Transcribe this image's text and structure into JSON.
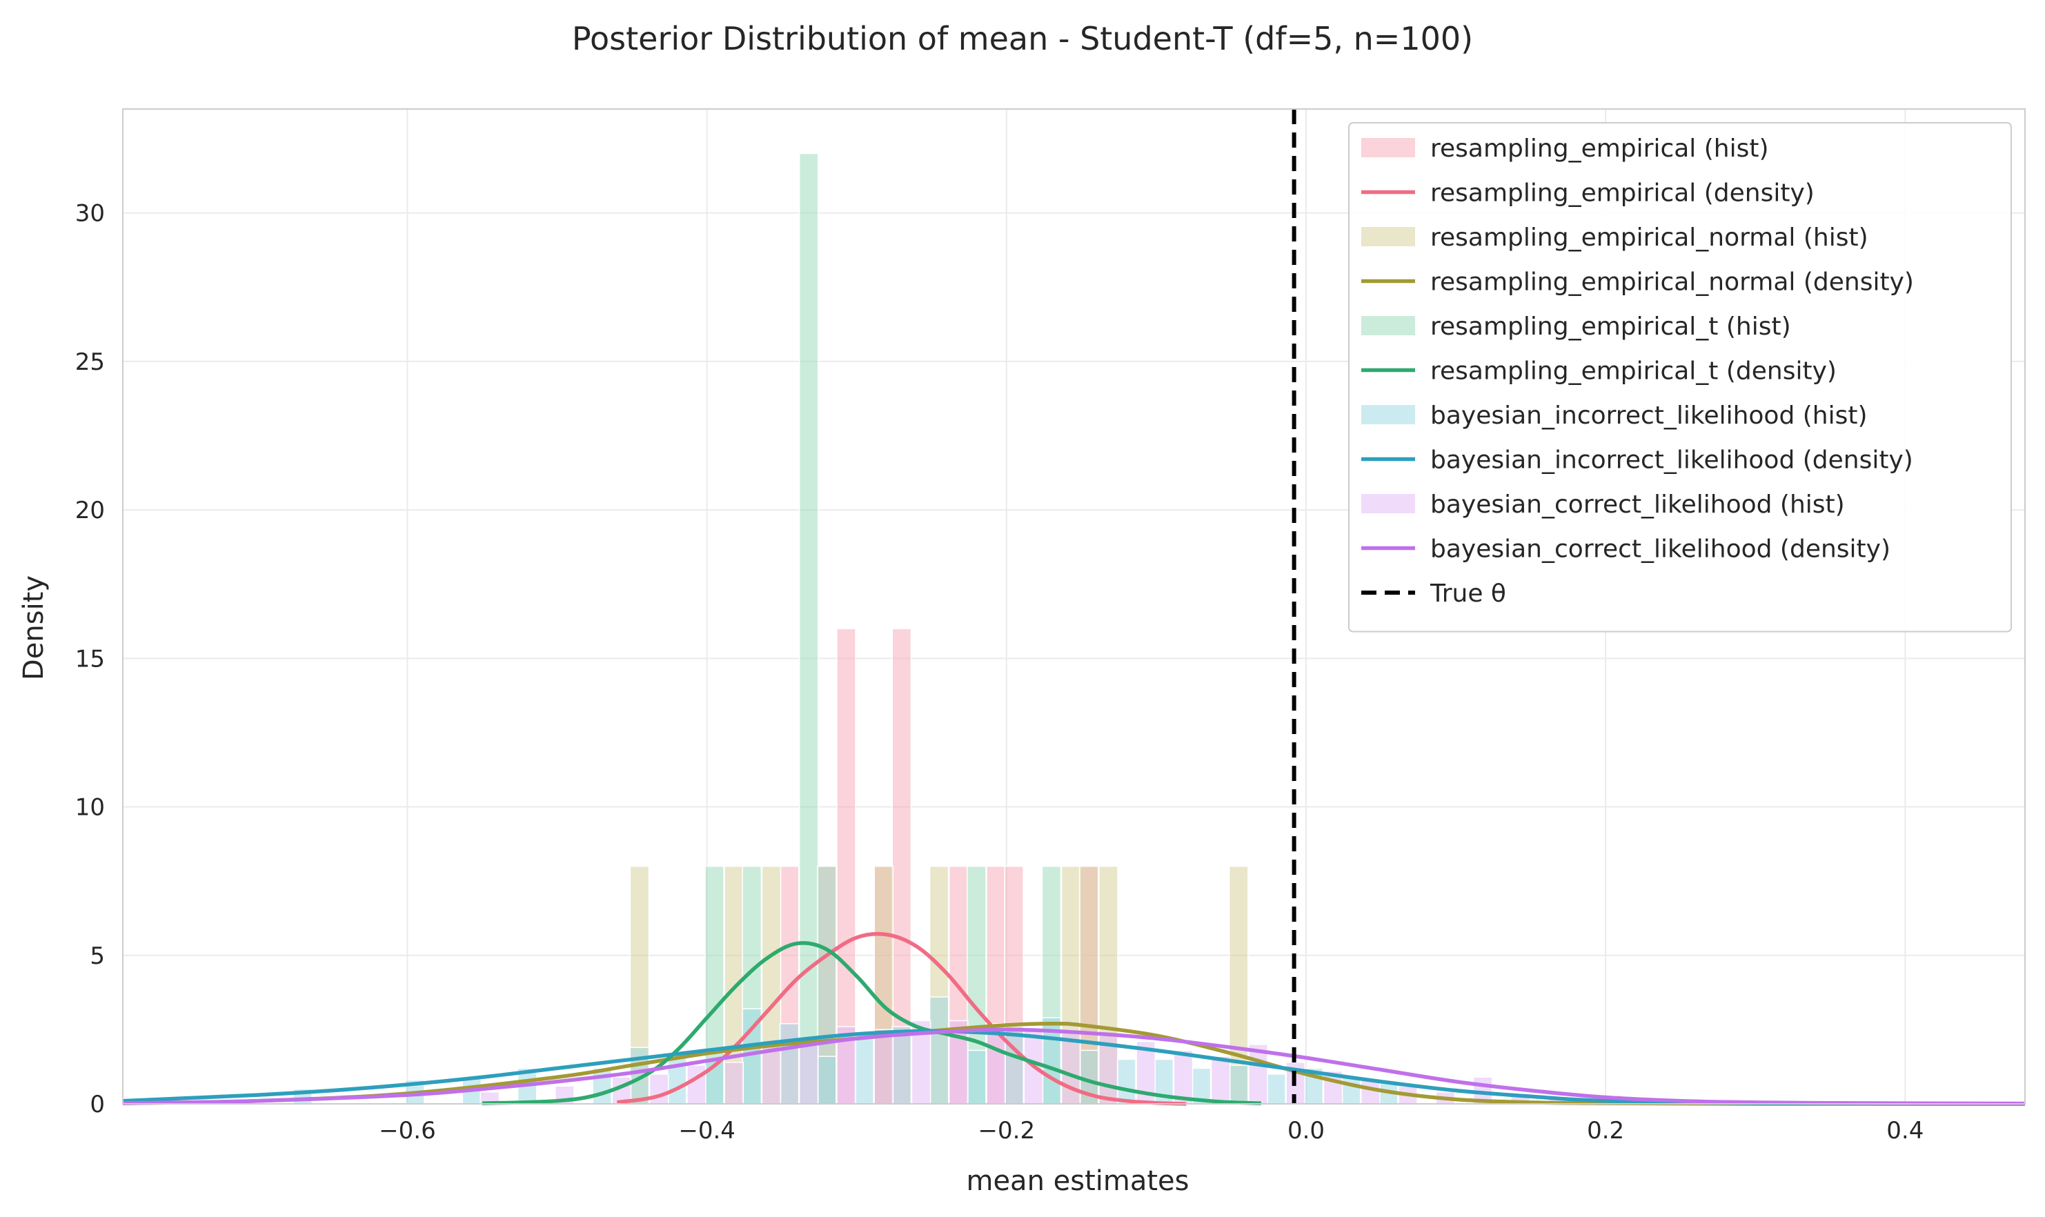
{
  "chart_data": {
    "type": "histogram+density",
    "title": "Posterior Distribution of mean - Student-T (df=5, n=100)",
    "xlabel": "mean estimates",
    "ylabel": "Density",
    "xlim": [
      -0.79,
      0.48
    ],
    "ylim": [
      0,
      33.5
    ],
    "xticks": [
      -0.6,
      -0.4,
      -0.2,
      0.0,
      0.2,
      0.4
    ],
    "xtick_labels": [
      "−0.6",
      "−0.4",
      "−0.2",
      "0.0",
      "0.2",
      "0.4"
    ],
    "yticks": [
      0,
      5,
      10,
      15,
      20,
      25,
      30
    ],
    "ytick_labels": [
      "0",
      "5",
      "10",
      "15",
      "20",
      "25",
      "30"
    ],
    "grid": true,
    "legend_position": "top-right",
    "true_theta": {
      "name": "True θ",
      "x": -0.008,
      "color": "#000000"
    },
    "series": [
      {
        "name": "resampling_empirical",
        "hist_label": "resampling_empirical (hist)",
        "density_label": "resampling_empirical (density)",
        "color": "#f06c84",
        "hist_color": "#f7a7b5",
        "bin_width": 0.0125,
        "hist": [
          {
            "x": -0.345,
            "y": 8.0
          },
          {
            "x": -0.32,
            "y": 8.0
          },
          {
            "x": -0.307,
            "y": 16.0
          },
          {
            "x": -0.282,
            "y": 8.0
          },
          {
            "x": -0.27,
            "y": 16.0
          },
          {
            "x": -0.232,
            "y": 8.0
          },
          {
            "x": -0.207,
            "y": 8.0
          },
          {
            "x": -0.195,
            "y": 8.0
          },
          {
            "x": -0.145,
            "y": 8.0
          }
        ],
        "density": {
          "x": [
            -0.46,
            -0.43,
            -0.4,
            -0.38,
            -0.36,
            -0.34,
            -0.32,
            -0.3,
            -0.28,
            -0.26,
            -0.24,
            -0.22,
            -0.2,
            -0.18,
            -0.16,
            -0.14,
            -0.12,
            -0.1,
            -0.08
          ],
          "y": [
            0.05,
            0.3,
            1.1,
            2.0,
            3.1,
            4.2,
            5.0,
            5.6,
            5.7,
            5.3,
            4.4,
            3.2,
            2.1,
            1.2,
            0.6,
            0.25,
            0.1,
            0.03,
            0.0
          ]
        }
      },
      {
        "name": "resampling_empirical_normal",
        "hist_label": "resampling_empirical_normal (hist)",
        "density_label": "resampling_empirical_normal (density)",
        "color": "#a39a34",
        "hist_color": "#d6cd96",
        "bin_width": 0.0125,
        "hist": [
          {
            "x": -0.445,
            "y": 8.0
          },
          {
            "x": -0.382,
            "y": 8.0
          },
          {
            "x": -0.357,
            "y": 8.0
          },
          {
            "x": -0.282,
            "y": 8.0
          },
          {
            "x": -0.245,
            "y": 8.0
          },
          {
            "x": -0.157,
            "y": 8.0
          },
          {
            "x": -0.145,
            "y": 8.0
          },
          {
            "x": -0.132,
            "y": 8.0
          },
          {
            "x": -0.045,
            "y": 8.0
          }
        ],
        "density": {
          "x": [
            -0.79,
            -0.7,
            -0.6,
            -0.5,
            -0.45,
            -0.4,
            -0.35,
            -0.3,
            -0.25,
            -0.2,
            -0.17,
            -0.15,
            -0.1,
            -0.05,
            0.0,
            0.05,
            0.1,
            0.15,
            0.2,
            0.3,
            0.48
          ],
          "y": [
            0.02,
            0.1,
            0.35,
            0.9,
            1.3,
            1.7,
            2.0,
            2.2,
            2.45,
            2.65,
            2.7,
            2.65,
            2.3,
            1.7,
            1.0,
            0.45,
            0.15,
            0.05,
            0.02,
            0.0,
            0.0
          ]
        }
      },
      {
        "name": "resampling_empirical_t",
        "hist_label": "resampling_empirical_t (hist)",
        "density_label": "resampling_empirical_t (density)",
        "color": "#2eaa6e",
        "hist_color": "#97dab8",
        "bin_width": 0.0125,
        "hist": [
          {
            "x": -0.395,
            "y": 8.0
          },
          {
            "x": -0.37,
            "y": 8.0
          },
          {
            "x": -0.332,
            "y": 32.0
          },
          {
            "x": -0.32,
            "y": 8.0
          },
          {
            "x": -0.22,
            "y": 8.0
          },
          {
            "x": -0.17,
            "y": 8.0
          }
        ],
        "density": {
          "x": [
            -0.55,
            -0.5,
            -0.47,
            -0.44,
            -0.42,
            -0.4,
            -0.38,
            -0.36,
            -0.34,
            -0.32,
            -0.3,
            -0.28,
            -0.26,
            -0.24,
            -0.22,
            -0.2,
            -0.17,
            -0.14,
            -0.1,
            -0.06,
            -0.03
          ],
          "y": [
            0.02,
            0.1,
            0.35,
            1.0,
            1.8,
            2.9,
            4.0,
            4.9,
            5.4,
            5.2,
            4.3,
            3.2,
            2.6,
            2.35,
            2.1,
            1.7,
            1.2,
            0.7,
            0.3,
            0.08,
            0.02
          ]
        }
      },
      {
        "name": "bayesian_incorrect_likelihood",
        "hist_label": "bayesian_incorrect_likelihood (hist)",
        "density_label": "bayesian_incorrect_likelihood (density)",
        "color": "#2d9fbd",
        "hist_color": "#9ad7e4",
        "bin_width": 0.0125,
        "hist": [
          {
            "x": -0.67,
            "y": 0.5
          },
          {
            "x": -0.595,
            "y": 0.8
          },
          {
            "x": -0.557,
            "y": 0.9
          },
          {
            "x": -0.52,
            "y": 1.2
          },
          {
            "x": -0.47,
            "y": 1.2
          },
          {
            "x": -0.445,
            "y": 1.9
          },
          {
            "x": -0.42,
            "y": 1.6
          },
          {
            "x": -0.395,
            "y": 1.5
          },
          {
            "x": -0.37,
            "y": 3.2
          },
          {
            "x": -0.345,
            "y": 2.7
          },
          {
            "x": -0.32,
            "y": 1.6
          },
          {
            "x": -0.295,
            "y": 2.4
          },
          {
            "x": -0.27,
            "y": 2.6
          },
          {
            "x": -0.245,
            "y": 3.6
          },
          {
            "x": -0.22,
            "y": 1.8
          },
          {
            "x": -0.195,
            "y": 2.6
          },
          {
            "x": -0.17,
            "y": 2.9
          },
          {
            "x": -0.145,
            "y": 1.8
          },
          {
            "x": -0.12,
            "y": 1.5
          },
          {
            "x": -0.095,
            "y": 1.5
          },
          {
            "x": -0.07,
            "y": 1.2
          },
          {
            "x": -0.045,
            "y": 1.3
          },
          {
            "x": -0.02,
            "y": 1.0
          },
          {
            "x": 0.005,
            "y": 1.2
          },
          {
            "x": 0.03,
            "y": 0.9
          },
          {
            "x": 0.055,
            "y": 0.7
          }
        ],
        "density": {
          "x": [
            -0.79,
            -0.7,
            -0.65,
            -0.6,
            -0.55,
            -0.5,
            -0.45,
            -0.4,
            -0.35,
            -0.3,
            -0.25,
            -0.2,
            -0.15,
            -0.1,
            -0.05,
            0.0,
            0.05,
            0.1,
            0.15,
            0.2,
            0.3,
            0.48
          ],
          "y": [
            0.1,
            0.3,
            0.45,
            0.65,
            0.9,
            1.2,
            1.5,
            1.8,
            2.1,
            2.35,
            2.45,
            2.35,
            2.1,
            1.8,
            1.45,
            1.1,
            0.75,
            0.45,
            0.25,
            0.1,
            0.02,
            0.0
          ]
        }
      },
      {
        "name": "bayesian_correct_likelihood",
        "hist_label": "bayesian_correct_likelihood (hist)",
        "density_label": "bayesian_correct_likelihood (density)",
        "color": "#c070ea",
        "hist_color": "#e2b8f5",
        "bin_width": 0.0125,
        "hist": [
          {
            "x": -0.545,
            "y": 0.4
          },
          {
            "x": -0.495,
            "y": 0.6
          },
          {
            "x": -0.457,
            "y": 0.9
          },
          {
            "x": -0.432,
            "y": 1.0
          },
          {
            "x": -0.407,
            "y": 1.3
          },
          {
            "x": -0.382,
            "y": 1.4
          },
          {
            "x": -0.357,
            "y": 2.0
          },
          {
            "x": -0.332,
            "y": 2.2
          },
          {
            "x": -0.307,
            "y": 2.6
          },
          {
            "x": -0.282,
            "y": 2.5
          },
          {
            "x": -0.257,
            "y": 2.8
          },
          {
            "x": -0.232,
            "y": 2.8
          },
          {
            "x": -0.207,
            "y": 2.7
          },
          {
            "x": -0.182,
            "y": 2.5
          },
          {
            "x": -0.157,
            "y": 2.4
          },
          {
            "x": -0.132,
            "y": 2.3
          },
          {
            "x": -0.107,
            "y": 2.1
          },
          {
            "x": -0.082,
            "y": 1.8
          },
          {
            "x": -0.057,
            "y": 1.6
          },
          {
            "x": -0.032,
            "y": 2.0
          },
          {
            "x": -0.007,
            "y": 1.4
          },
          {
            "x": 0.018,
            "y": 1.1
          },
          {
            "x": 0.043,
            "y": 0.8
          },
          {
            "x": 0.068,
            "y": 0.6
          },
          {
            "x": 0.093,
            "y": 0.4
          },
          {
            "x": 0.118,
            "y": 0.9
          },
          {
            "x": 0.143,
            "y": 0.3
          },
          {
            "x": 0.168,
            "y": 0.2
          }
        ],
        "density": {
          "x": [
            -0.79,
            -0.7,
            -0.6,
            -0.55,
            -0.5,
            -0.45,
            -0.4,
            -0.35,
            -0.3,
            -0.25,
            -0.2,
            -0.15,
            -0.1,
            -0.05,
            0.0,
            0.05,
            0.1,
            0.15,
            0.2,
            0.25,
            0.3,
            0.35,
            0.4,
            0.48
          ],
          "y": [
            0.02,
            0.1,
            0.3,
            0.5,
            0.75,
            1.05,
            1.45,
            1.85,
            2.2,
            2.4,
            2.5,
            2.4,
            2.2,
            1.9,
            1.55,
            1.15,
            0.75,
            0.45,
            0.22,
            0.1,
            0.05,
            0.03,
            0.02,
            0.01
          ]
        }
      }
    ]
  }
}
